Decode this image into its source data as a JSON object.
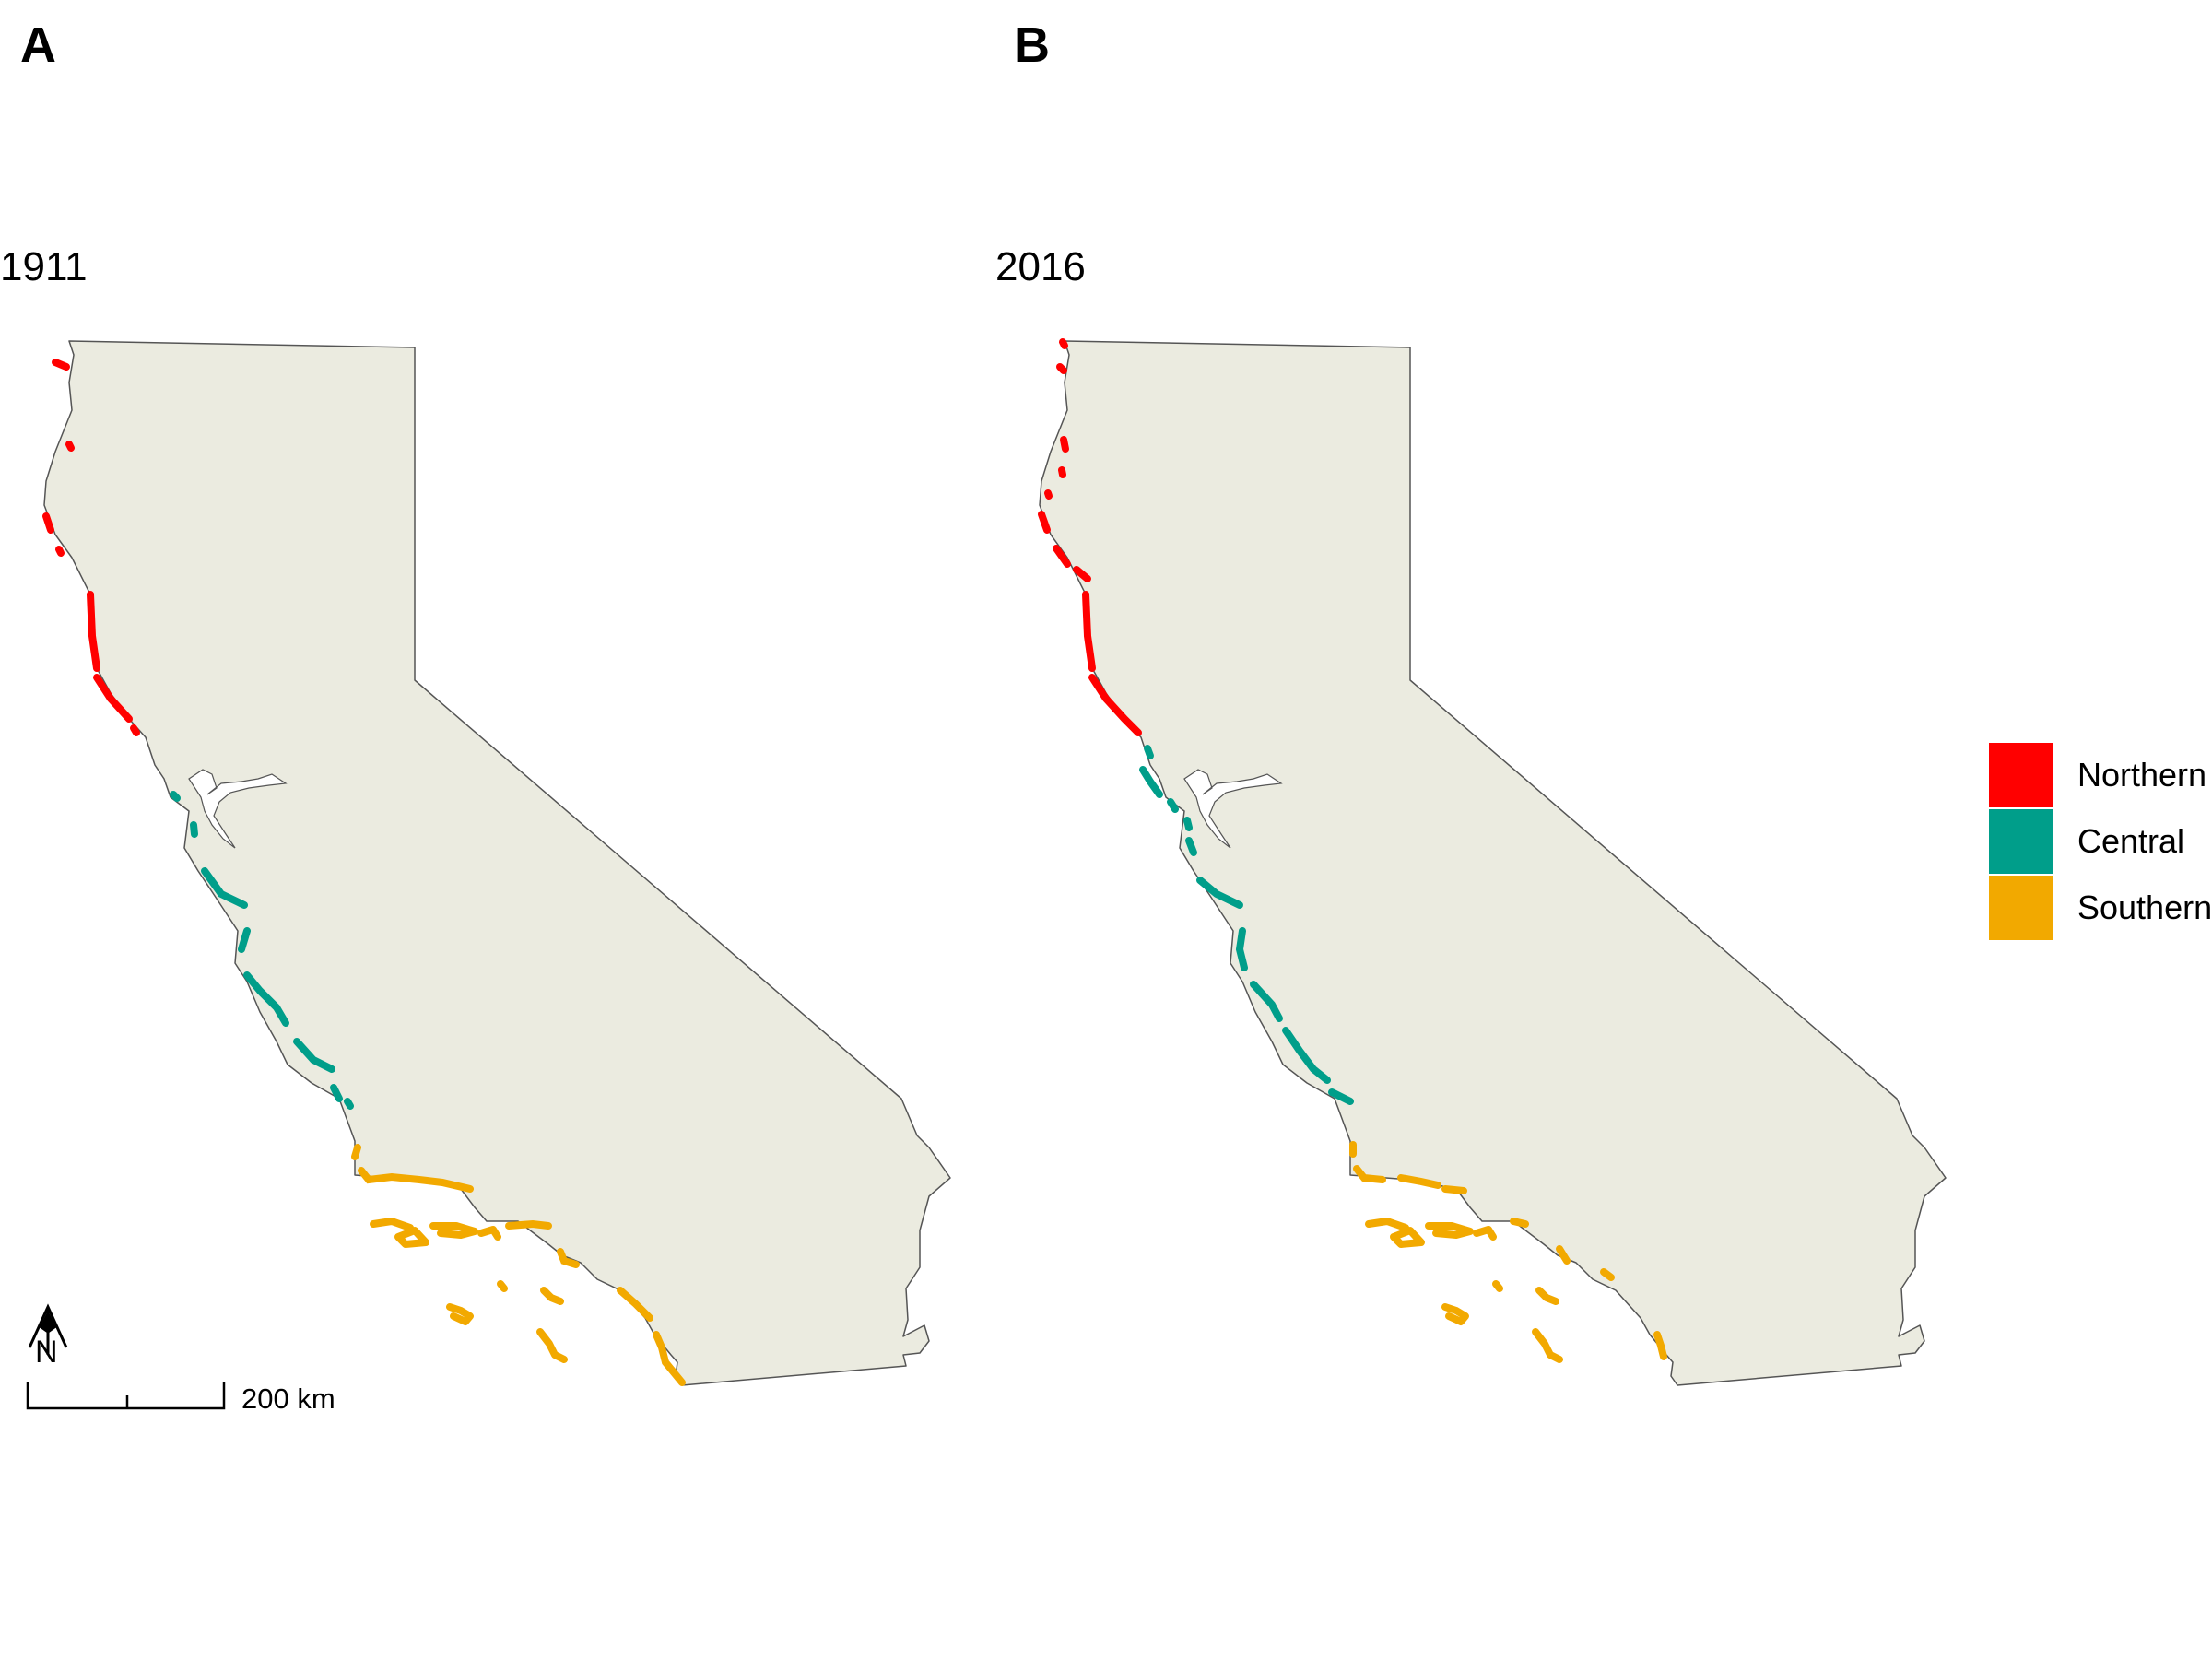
{
  "panels": [
    {
      "letter": "A",
      "year": "1911"
    },
    {
      "letter": "B",
      "year": "2016"
    }
  ],
  "legend": {
    "items": [
      {
        "label": "Northern",
        "color": "#ff0000"
      },
      {
        "label": "Central",
        "color": "#009e8a"
      },
      {
        "label": "Southern",
        "color": "#f2a900"
      }
    ]
  },
  "scale_bar": {
    "label": "200 km"
  },
  "north_arrow": {
    "label": "N",
    "icon": "north-arrow-icon"
  },
  "colors": {
    "land": "#ebebe0",
    "outline": "#555555"
  }
}
